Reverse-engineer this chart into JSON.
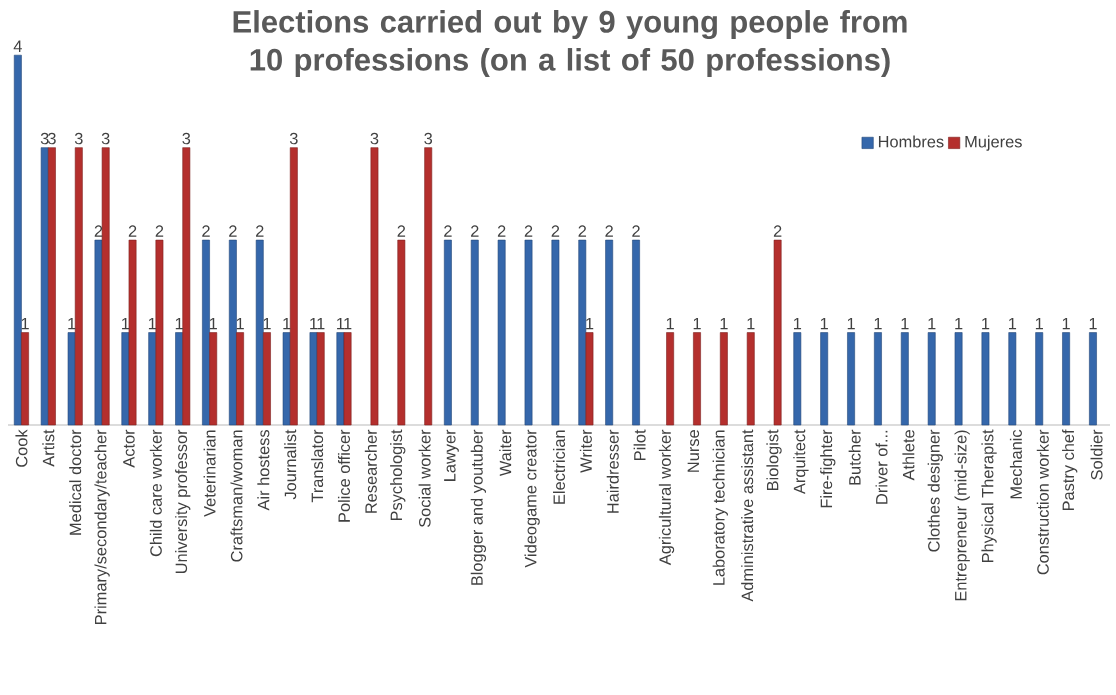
{
  "chart_data": {
    "type": "bar",
    "title": "Elections carried out by 9 young people from 10 professions (on a list of 50 professions)",
    "categories": [
      "Cook",
      "Artist",
      "Medical doctor",
      "Primary/secondary/teacher",
      "Actor",
      "Child care worker",
      "University professor",
      "Veterinarian",
      "Craftsman/woman",
      "Air hostess",
      "Journalist",
      "Translator",
      "Police officer",
      "Researcher",
      "Psychologist",
      "Social worker",
      "Lawyer",
      "Blogger and youtuber",
      "Waiter",
      "Videogame creator",
      "Electrician",
      "Writer",
      "Hairdresser",
      "Pilot",
      "Agricultural worker",
      "Nurse",
      "Laboratory technician",
      "Administrative  assistant",
      "Biologist",
      "Arquitect",
      "Fire-fighter",
      "Butcher",
      "Driver of...",
      "Athlete",
      "Clothes designer",
      "Entrepreneur (mid-size)",
      "Physical Therapist",
      "Mechanic",
      "Construction worker",
      "Pastry chef",
      "Soldier"
    ],
    "series": [
      {
        "name": "Hombres",
        "color": "#3567ab",
        "values": [
          4,
          3,
          1,
          2,
          1,
          1,
          1,
          2,
          2,
          2,
          1,
          1,
          1,
          null,
          null,
          null,
          2,
          2,
          2,
          2,
          2,
          2,
          2,
          2,
          null,
          null,
          null,
          null,
          null,
          1,
          1,
          1,
          1,
          1,
          1,
          1,
          1,
          1,
          1,
          1,
          1
        ]
      },
      {
        "name": "Mujeres",
        "color": "#b42f2d",
        "values": [
          1,
          3,
          3,
          3,
          2,
          2,
          3,
          1,
          1,
          1,
          3,
          1,
          1,
          3,
          2,
          3,
          null,
          null,
          null,
          null,
          null,
          1,
          null,
          null,
          1,
          1,
          1,
          1,
          2,
          null,
          null,
          null,
          null,
          null,
          null,
          null,
          null,
          null,
          null,
          null,
          null
        ]
      }
    ],
    "data_labels": true,
    "legend": "top right"
  }
}
